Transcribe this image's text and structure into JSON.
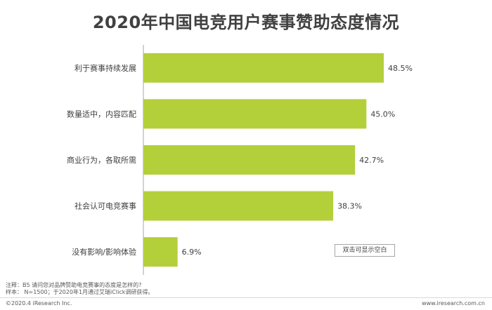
{
  "chart_data": {
    "type": "bar",
    "orientation": "horizontal",
    "title": "2020年中国电竞用户赛事赞助态度情况",
    "categories": [
      "利于赛事持续发展",
      "数量适中，内容匹配",
      "商业行为，各取所需",
      "社会认可电竞赛事",
      "没有影响/影响体验"
    ],
    "values": [
      48.5,
      45.0,
      42.7,
      38.3,
      6.9
    ],
    "value_labels": [
      "48.5%",
      "45.0%",
      "42.7%",
      "38.3%",
      "6.9%"
    ],
    "unit": "%",
    "xlim": [
      0,
      60
    ],
    "bar_color": "#b3cf3a",
    "grid": false
  },
  "hint_button": "双击可显示空白",
  "notes": {
    "line1": "注释：B5 请问您对品牌赞助电竞赛事的态度是怎样的?",
    "line2": "样本：  N=1500；于2020年1月通过艾瑞iClick调研获得。"
  },
  "footer": {
    "copyright": "©2020.4 iResearch Inc.",
    "site": "www.iresearch.com.cn"
  }
}
